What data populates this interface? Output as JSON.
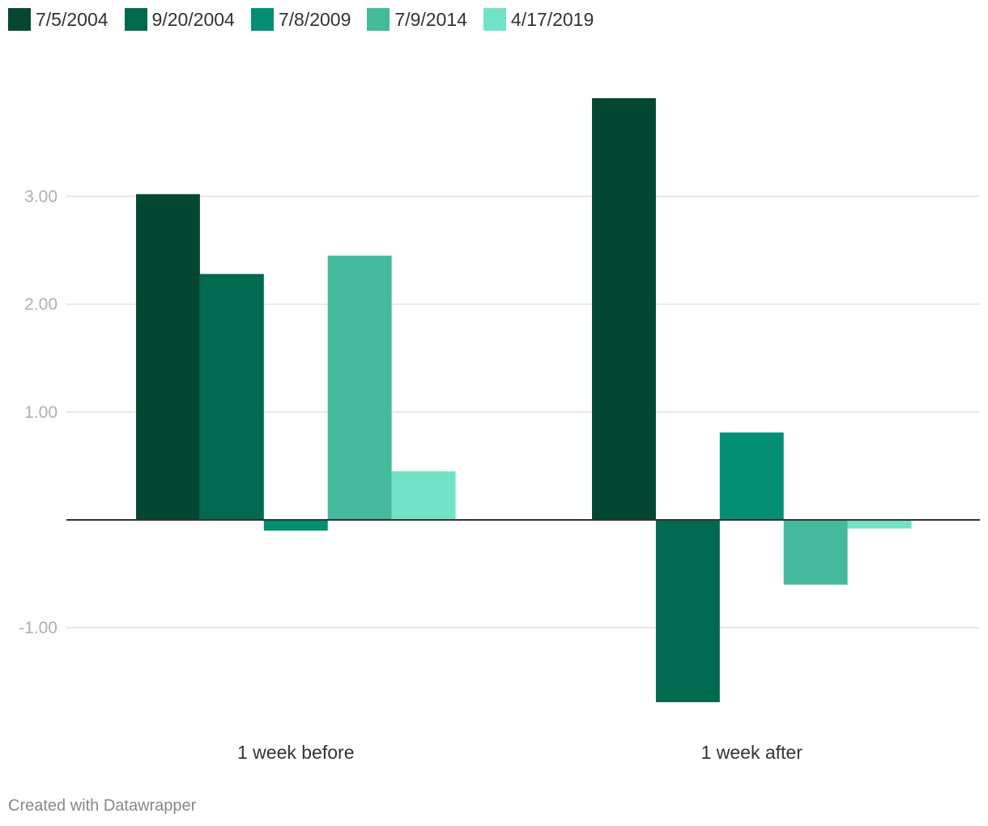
{
  "chart_data": {
    "type": "bar",
    "categories": [
      "1 week before",
      "1 week after"
    ],
    "series": [
      {
        "name": "7/5/2004",
        "color": "#034732",
        "values": [
          3.02,
          3.91
        ]
      },
      {
        "name": "9/20/2004",
        "color": "#016950",
        "values": [
          2.28,
          -1.69
        ]
      },
      {
        "name": "7/8/2009",
        "color": "#028f74",
        "values": [
          -0.1,
          0.81
        ]
      },
      {
        "name": "7/9/2014",
        "color": "#44b99c",
        "values": [
          2.45,
          -0.6
        ]
      },
      {
        "name": "4/17/2019",
        "color": "#72e2c6",
        "values": [
          0.45,
          -0.08
        ]
      }
    ],
    "y_ticks": [
      "3.00",
      "2.00",
      "1.00",
      "-1.00"
    ],
    "y_tick_values": [
      3,
      2,
      1,
      -1
    ],
    "ylim": [
      -1.9,
      4.0
    ],
    "grid": true,
    "legend_position": "top-left"
  },
  "footer": "Created with Datawrapper"
}
